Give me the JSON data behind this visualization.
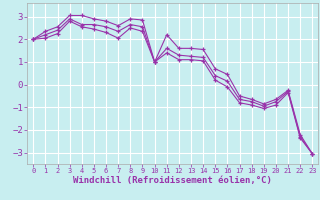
{
  "bg_color": "#c8eef0",
  "grid_color": "#ffffff",
  "line_color": "#9933aa",
  "xlabel": "Windchill (Refroidissement éolien,°C)",
  "xlim": [
    -0.5,
    23.5
  ],
  "ylim": [
    -3.5,
    3.6
  ],
  "yticks": [
    -3,
    -2,
    -1,
    0,
    1,
    2,
    3
  ],
  "xticks": [
    0,
    1,
    2,
    3,
    4,
    5,
    6,
    7,
    8,
    9,
    10,
    11,
    12,
    13,
    14,
    15,
    16,
    17,
    18,
    19,
    20,
    21,
    22,
    23
  ],
  "series1_x": [
    0,
    1,
    2,
    3,
    4,
    5,
    6,
    7,
    8,
    9,
    10,
    11,
    12,
    13,
    14,
    15,
    16,
    17,
    18,
    19,
    20,
    21,
    22,
    23
  ],
  "series1_y": [
    2.0,
    2.35,
    2.55,
    3.05,
    3.05,
    2.9,
    2.8,
    2.6,
    2.9,
    2.85,
    1.0,
    2.2,
    1.6,
    1.6,
    1.55,
    0.7,
    0.45,
    -0.5,
    -0.65,
    -0.85,
    -0.65,
    -0.25,
    -2.2,
    -3.05
  ],
  "series2_x": [
    0,
    1,
    2,
    3,
    4,
    5,
    6,
    7,
    8,
    9,
    10,
    11,
    12,
    13,
    14,
    15,
    16,
    17,
    18,
    19,
    20,
    21,
    22,
    23
  ],
  "series2_y": [
    2.0,
    2.2,
    2.4,
    2.9,
    2.65,
    2.65,
    2.55,
    2.35,
    2.65,
    2.55,
    1.0,
    1.6,
    1.3,
    1.25,
    1.2,
    0.4,
    0.15,
    -0.65,
    -0.75,
    -0.95,
    -0.75,
    -0.3,
    -2.3,
    -3.05
  ],
  "series3_x": [
    0,
    1,
    2,
    3,
    4,
    5,
    6,
    7,
    8,
    9,
    10,
    11,
    12,
    13,
    14,
    15,
    16,
    17,
    18,
    19,
    20,
    21,
    22,
    23
  ],
  "series3_y": [
    2.0,
    2.05,
    2.25,
    2.8,
    2.55,
    2.45,
    2.3,
    2.05,
    2.5,
    2.35,
    1.0,
    1.4,
    1.1,
    1.1,
    1.05,
    0.2,
    -0.1,
    -0.8,
    -0.9,
    -1.05,
    -0.9,
    -0.35,
    -2.35,
    -3.05
  ]
}
